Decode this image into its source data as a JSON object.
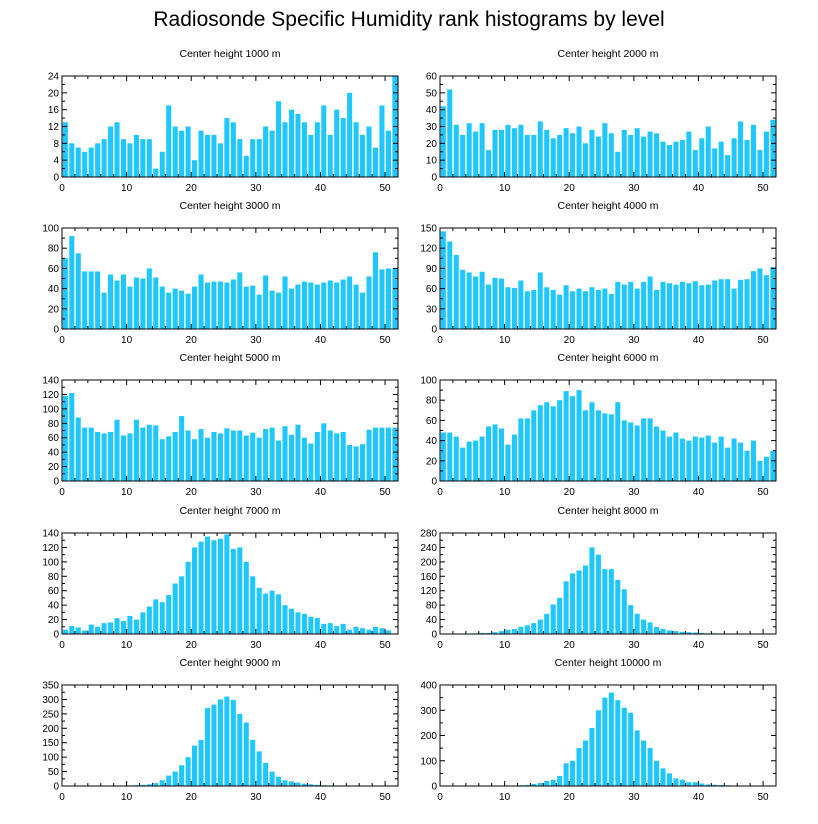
{
  "title": "Radiosonde Specific Humidity rank histograms by level",
  "colors": {
    "bar": "#1ec8ff",
    "axis": "#000000",
    "background": "#ffffff"
  },
  "chart_data": [
    {
      "type": "bar",
      "title": "Center height 1000 m",
      "xlabel": "",
      "ylabel": "",
      "xlim": [
        0,
        52
      ],
      "ylim": [
        0,
        24
      ],
      "xticks": [
        0,
        10,
        20,
        30,
        40,
        50
      ],
      "yticks": [
        0,
        4,
        8,
        12,
        16,
        20,
        24
      ],
      "values": [
        13,
        8,
        7,
        6,
        7,
        8,
        9,
        12,
        13,
        9,
        8,
        10,
        9,
        9,
        2,
        6,
        17,
        12,
        11,
        12,
        4,
        11,
        10,
        10,
        8,
        14,
        13,
        9,
        5,
        9,
        9,
        12,
        11,
        18,
        13,
        16,
        15,
        13,
        10,
        13,
        17,
        10,
        16,
        14,
        20,
        13,
        10,
        12,
        7,
        17,
        11,
        24
      ]
    },
    {
      "type": "bar",
      "title": "Center height 2000 m",
      "xlabel": "",
      "ylabel": "",
      "xlim": [
        0,
        52
      ],
      "ylim": [
        0,
        60
      ],
      "xticks": [
        0,
        10,
        20,
        30,
        40,
        50
      ],
      "yticks": [
        0,
        10,
        20,
        30,
        40,
        50,
        60
      ],
      "values": [
        42,
        52,
        31,
        25,
        32,
        27,
        32,
        16,
        28,
        28,
        31,
        29,
        31,
        25,
        25,
        33,
        28,
        23,
        25,
        29,
        26,
        30,
        20,
        28,
        24,
        32,
        26,
        15,
        28,
        25,
        29,
        24,
        27,
        26,
        21,
        19,
        21,
        22,
        27,
        16,
        23,
        30,
        17,
        21,
        13,
        23,
        33,
        22,
        31,
        16,
        27,
        34
      ]
    },
    {
      "type": "bar",
      "title": "Center height 3000 m",
      "xlabel": "",
      "ylabel": "",
      "xlim": [
        0,
        52
      ],
      "ylim": [
        0,
        100
      ],
      "xticks": [
        0,
        10,
        20,
        30,
        40,
        50
      ],
      "yticks": [
        0,
        20,
        40,
        60,
        80,
        100
      ],
      "values": [
        70,
        92,
        75,
        57,
        57,
        57,
        36,
        54,
        48,
        54,
        42,
        51,
        50,
        60,
        51,
        42,
        36,
        40,
        38,
        35,
        42,
        54,
        46,
        47,
        47,
        46,
        49,
        56,
        42,
        43,
        34,
        53,
        38,
        36,
        52,
        40,
        44,
        47,
        46,
        44,
        46,
        48,
        46,
        49,
        52,
        44,
        36,
        52,
        76,
        59,
        60,
        60
      ]
    },
    {
      "type": "bar",
      "title": "Center height 4000 m",
      "xlabel": "",
      "ylabel": "",
      "xlim": [
        0,
        52
      ],
      "ylim": [
        0,
        150
      ],
      "xticks": [
        0,
        10,
        20,
        30,
        40,
        50
      ],
      "yticks": [
        0,
        30,
        60,
        90,
        120,
        150
      ],
      "values": [
        145,
        130,
        110,
        88,
        84,
        78,
        85,
        66,
        76,
        75,
        62,
        61,
        72,
        56,
        58,
        84,
        62,
        58,
        51,
        65,
        56,
        60,
        56,
        62,
        58,
        60,
        52,
        70,
        66,
        70,
        60,
        70,
        78,
        58,
        70,
        68,
        66,
        70,
        68,
        71,
        65,
        66,
        72,
        74,
        74,
        60,
        73,
        74,
        86,
        90,
        80,
        92
      ]
    },
    {
      "type": "bar",
      "title": "Center height 5000 m",
      "xlabel": "",
      "ylabel": "",
      "xlim": [
        0,
        52
      ],
      "ylim": [
        0,
        140
      ],
      "xticks": [
        0,
        10,
        20,
        30,
        40,
        50
      ],
      "yticks": [
        0,
        20,
        40,
        60,
        80,
        100,
        120,
        140
      ],
      "values": [
        118,
        122,
        88,
        74,
        74,
        68,
        66,
        68,
        85,
        63,
        66,
        85,
        74,
        78,
        77,
        58,
        62,
        68,
        90,
        70,
        58,
        72,
        60,
        68,
        66,
        73,
        70,
        70,
        63,
        67,
        60,
        72,
        74,
        56,
        76,
        64,
        78,
        60,
        52,
        68,
        80,
        70,
        66,
        68,
        50,
        48,
        51,
        71,
        74,
        74,
        74,
        74
      ]
    },
    {
      "type": "bar",
      "title": "Center height 6000 m",
      "xlabel": "",
      "ylabel": "",
      "xlim": [
        0,
        52
      ],
      "ylim": [
        0,
        100
      ],
      "xticks": [
        0,
        10,
        20,
        30,
        40,
        50
      ],
      "yticks": [
        0,
        20,
        40,
        60,
        80,
        100
      ],
      "values": [
        48,
        48,
        44,
        33,
        39,
        40,
        44,
        54,
        56,
        52,
        36,
        46,
        62,
        62,
        70,
        75,
        78,
        74,
        80,
        89,
        84,
        90,
        70,
        78,
        70,
        67,
        66,
        78,
        60,
        58,
        55,
        62,
        62,
        54,
        50,
        44,
        48,
        42,
        40,
        44,
        43,
        45,
        38,
        44,
        33,
        42,
        38,
        30,
        40,
        20,
        24,
        30
      ]
    },
    {
      "type": "bar",
      "title": "Center height 7000 m",
      "xlabel": "",
      "ylabel": "",
      "xlim": [
        0,
        52
      ],
      "ylim": [
        0,
        140
      ],
      "xticks": [
        0,
        10,
        20,
        30,
        40,
        50
      ],
      "yticks": [
        0,
        20,
        40,
        60,
        80,
        100,
        120,
        140
      ],
      "values": [
        6,
        11,
        9,
        5,
        13,
        10,
        15,
        16,
        22,
        18,
        25,
        20,
        30,
        38,
        48,
        44,
        54,
        70,
        80,
        100,
        120,
        128,
        135,
        130,
        132,
        138,
        118,
        120,
        100,
        80,
        64,
        56,
        60,
        55,
        40,
        35,
        30,
        28,
        24,
        22,
        14,
        15,
        11,
        14,
        6,
        10,
        8,
        6,
        10,
        8,
        5,
        0
      ]
    },
    {
      "type": "bar",
      "title": "Center height 8000 m",
      "xlabel": "",
      "ylabel": "",
      "xlim": [
        0,
        52
      ],
      "ylim": [
        0,
        280
      ],
      "xticks": [
        0,
        10,
        20,
        30,
        40,
        50
      ],
      "yticks": [
        0,
        40,
        80,
        120,
        160,
        200,
        240,
        280
      ],
      "values": [
        0,
        0,
        0,
        0,
        0,
        2,
        3,
        3,
        5,
        8,
        12,
        14,
        20,
        24,
        30,
        40,
        56,
        82,
        100,
        146,
        168,
        176,
        190,
        240,
        220,
        180,
        180,
        150,
        124,
        80,
        56,
        40,
        32,
        20,
        14,
        10,
        8,
        6,
        5,
        4,
        3,
        2,
        2,
        1,
        1,
        1,
        0,
        0,
        0,
        0,
        0,
        0
      ]
    },
    {
      "type": "bar",
      "title": "Center height 9000 m",
      "xlabel": "",
      "ylabel": "",
      "xlim": [
        0,
        52
      ],
      "ylim": [
        0,
        350
      ],
      "xticks": [
        0,
        10,
        20,
        30,
        40,
        50
      ],
      "yticks": [
        0,
        50,
        100,
        150,
        200,
        250,
        300,
        350
      ],
      "values": [
        0,
        0,
        0,
        0,
        0,
        0,
        0,
        0,
        0,
        0,
        2,
        3,
        4,
        6,
        10,
        20,
        36,
        50,
        72,
        100,
        140,
        160,
        270,
        282,
        300,
        310,
        298,
        250,
        220,
        160,
        120,
        80,
        50,
        32,
        20,
        16,
        12,
        8,
        6,
        4,
        3,
        2,
        2,
        1,
        1,
        1,
        0,
        0,
        0,
        0,
        0,
        0
      ]
    },
    {
      "type": "bar",
      "title": "Center height 10000 m",
      "xlabel": "",
      "ylabel": "",
      "xlim": [
        0,
        52
      ],
      "ylim": [
        0,
        400
      ],
      "xticks": [
        0,
        10,
        20,
        30,
        40,
        50
      ],
      "yticks": [
        0,
        100,
        200,
        300,
        400
      ],
      "values": [
        0,
        0,
        0,
        0,
        0,
        0,
        0,
        0,
        0,
        0,
        1,
        2,
        3,
        4,
        8,
        12,
        20,
        24,
        40,
        90,
        100,
        150,
        180,
        230,
        300,
        350,
        370,
        340,
        310,
        290,
        220,
        180,
        150,
        100,
        70,
        50,
        30,
        25,
        15,
        15,
        10,
        6,
        5,
        4,
        3,
        2,
        2,
        1,
        1,
        1,
        0,
        0
      ]
    }
  ]
}
